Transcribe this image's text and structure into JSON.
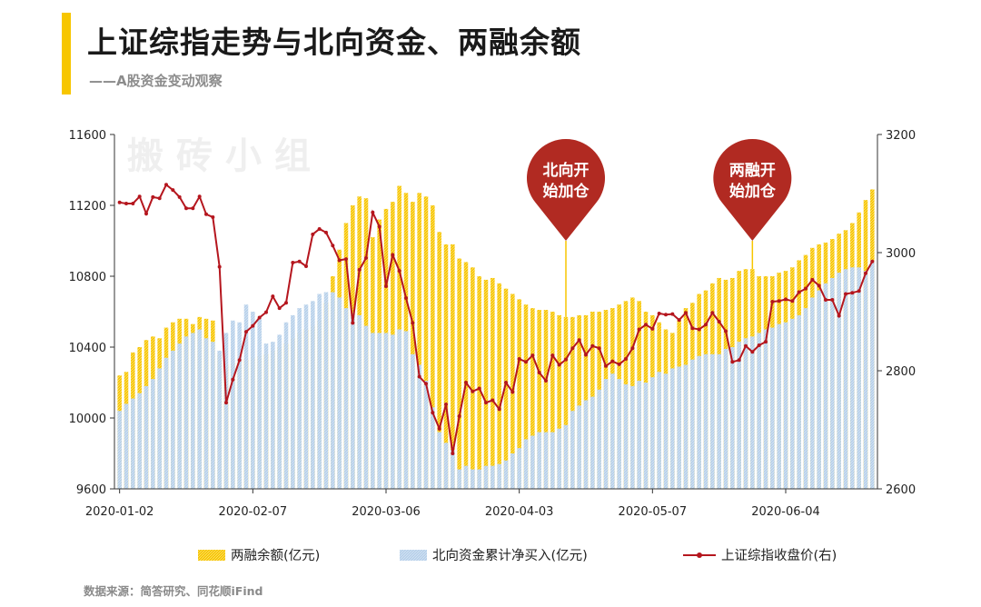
{
  "title": "上证综指走势与北向资金、两融余额",
  "subtitle": "——A股资金变动观察",
  "watermark": "搬砖小组",
  "source": "数据来源：简答研究、同花顺iFind",
  "colors": {
    "margin_bar": "#f7c600",
    "north_bar": "#b7d0ea",
    "index_line": "#b5161e",
    "pin": "#b12a22",
    "accent": "#f7c600"
  },
  "annotations": [
    {
      "text_line1": "北向开",
      "text_line2": "始加仓",
      "index": 67
    },
    {
      "text_line1": "两融开",
      "text_line2": "始加仓",
      "index": 95
    }
  ],
  "chart_data": {
    "type": "bar",
    "x_tick_labels": [
      "2020-01-02",
      "2020-02-07",
      "2020-03-06",
      "2020-04-03",
      "2020-05-07",
      "2020-06-04"
    ],
    "x_tick_indices": [
      0,
      20,
      40,
      60,
      80,
      100
    ],
    "left_axis": {
      "ylim": [
        9600,
        11600
      ],
      "ticks": [
        9600,
        10000,
        10400,
        10800,
        11200,
        11600
      ]
    },
    "right_axis": {
      "ylim": [
        2600,
        3200
      ],
      "ticks": [
        2600,
        2800,
        3000,
        3200
      ]
    },
    "grid": false,
    "legend_position": "bottom",
    "series": [
      {
        "name": "两融余额(亿元)",
        "type": "bar",
        "axis": "left",
        "values": [
          10240,
          10260,
          10370,
          10400,
          10440,
          10460,
          10450,
          10510,
          10540,
          10560,
          10560,
          10530,
          10570,
          10560,
          10550,
          10360,
          10300,
          10310,
          10320,
          10330,
          10340,
          10350,
          10360,
          10380,
          10400,
          10420,
          10450,
          10480,
          10500,
          10520,
          10550,
          10650,
          10800,
          10950,
          11100,
          11200,
          11250,
          11240,
          11020,
          11120,
          11180,
          11220,
          11310,
          11270,
          11220,
          11270,
          11250,
          11200,
          11050,
          10980,
          10980,
          10900,
          10880,
          10850,
          10800,
          10780,
          10790,
          10760,
          10730,
          10700,
          10670,
          10640,
          10620,
          10610,
          10610,
          10600,
          10580,
          10570,
          10570,
          10580,
          10580,
          10600,
          10600,
          10610,
          10620,
          10640,
          10660,
          10680,
          10660,
          10600,
          10580,
          10540,
          10500,
          10480,
          10550,
          10620,
          10650,
          10700,
          10720,
          10760,
          10790,
          10780,
          10790,
          10830,
          10840,
          10840,
          10800,
          10800,
          10800,
          10820,
          10830,
          10850,
          10890,
          10920,
          10960,
          10980,
          10990,
          11010,
          11040,
          11060,
          11100,
          11160,
          11230,
          11290
        ]
      },
      {
        "name": "北向资金累计净买入(亿元)",
        "type": "bar",
        "axis": "left",
        "values": [
          10040,
          10080,
          10110,
          10140,
          10180,
          10220,
          10280,
          10340,
          10380,
          10420,
          10460,
          10480,
          10500,
          10450,
          10430,
          10380,
          10480,
          10550,
          10540,
          10640,
          10600,
          10560,
          10420,
          10430,
          10470,
          10540,
          10580,
          10620,
          10640,
          10660,
          10700,
          10710,
          10710,
          10680,
          10620,
          10590,
          10580,
          10520,
          10480,
          10480,
          10480,
          10470,
          10500,
          10490,
          10360,
          10300,
          10210,
          10060,
          9920,
          9860,
          9820,
          9710,
          9730,
          9710,
          9710,
          9730,
          9730,
          9740,
          9760,
          9800,
          9830,
          9880,
          9900,
          9920,
          9920,
          9920,
          9940,
          9960,
          10040,
          10070,
          10100,
          10120,
          10160,
          10220,
          10250,
          10220,
          10190,
          10180,
          10210,
          10200,
          10230,
          10260,
          10250,
          10280,
          10290,
          10300,
          10330,
          10350,
          10360,
          10360,
          10360,
          10390,
          10400,
          10430,
          10450,
          10460,
          10480,
          10500,
          10510,
          10530,
          10540,
          10560,
          10580,
          10620,
          10680,
          10720,
          10760,
          10790,
          10820,
          10840,
          10850,
          10850,
          10830,
          10890
        ]
      },
      {
        "name": "上证综指收盘价(右)",
        "type": "line",
        "axis": "right",
        "values": [
          3085,
          3083,
          3083,
          3095,
          3066,
          3094,
          3092,
          3115,
          3106,
          3094,
          3075,
          3075,
          3095,
          3065,
          3060,
          2976,
          2746,
          2785,
          2818,
          2866,
          2876,
          2890,
          2899,
          2926,
          2906,
          2915,
          2983,
          2985,
          2977,
          3031,
          3040,
          3034,
          3012,
          2987,
          2989,
          2881,
          2971,
          2991,
          3068,
          3044,
          2943,
          2996,
          2969,
          2923,
          2881,
          2790,
          2778,
          2729,
          2702,
          2743,
          2660,
          2723,
          2780,
          2765,
          2770,
          2746,
          2750,
          2735,
          2780,
          2764,
          2820,
          2815,
          2826,
          2797,
          2783,
          2826,
          2810,
          2819,
          2838,
          2852,
          2827,
          2842,
          2838,
          2808,
          2816,
          2811,
          2820,
          2838,
          2870,
          2878,
          2871,
          2897,
          2895,
          2896,
          2886,
          2898,
          2872,
          2870,
          2878,
          2898,
          2883,
          2867,
          2815,
          2818,
          2842,
          2832,
          2843,
          2849,
          2917,
          2918,
          2921,
          2918,
          2933,
          2939,
          2954,
          2944,
          2920,
          2920,
          2893,
          2930,
          2932,
          2935,
          2965,
          2985
        ]
      }
    ]
  }
}
